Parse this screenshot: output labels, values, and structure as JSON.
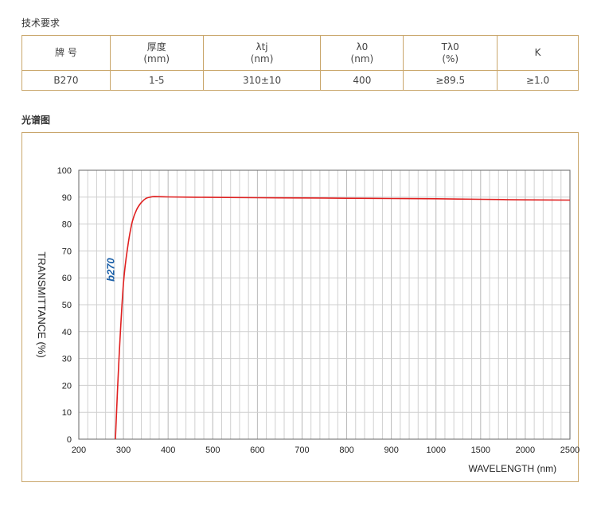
{
  "page": {
    "tech_title": "技术要求",
    "spectrum_title": "光谱图"
  },
  "table": {
    "headers": [
      [
        "牌 号"
      ],
      [
        "厚度",
        "(mm)"
      ],
      [
        "λtj",
        "(nm)"
      ],
      [
        "λ0",
        "(nm)"
      ],
      [
        "Tλ0",
        "(%)"
      ],
      [
        "K"
      ]
    ],
    "row": [
      "B270",
      "1-5",
      "310±10",
      "400",
      "≥89.5",
      "≥1.0"
    ]
  },
  "chart_data": {
    "type": "line",
    "xlabel": "WAVELENGTH (nm)",
    "ylabel": "TRANSMITTANCE   (%)",
    "x_ticks": [
      "200",
      "300",
      "400",
      "500",
      "600",
      "700",
      "800",
      "900",
      "1000",
      "1500",
      "2000",
      "2500"
    ],
    "y_ticks": [
      "0",
      "10",
      "20",
      "30",
      "40",
      "50",
      "60",
      "70",
      "80",
      "90",
      "100"
    ],
    "ylim": [
      0,
      100
    ],
    "grid": true,
    "series": [
      {
        "name": "b270",
        "color": "#e02020",
        "x": [
          282,
          290,
          300,
          310,
          320,
          330,
          340,
          350,
          360,
          370,
          400,
          500,
          600,
          700,
          800,
          900,
          1000,
          1500,
          2000,
          2500
        ],
        "y": [
          0,
          30,
          58,
          72,
          81,
          85.5,
          88,
          89.5,
          90,
          90.2,
          90.1,
          89.9,
          89.8,
          89.7,
          89.6,
          89.5,
          89.4,
          89.2,
          89.0,
          88.9
        ]
      }
    ]
  }
}
